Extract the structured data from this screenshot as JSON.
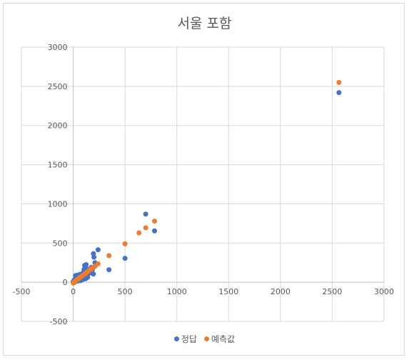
{
  "chart_data": {
    "type": "scatter",
    "title": "서울 포함",
    "xlabel": "",
    "ylabel": "",
    "xlim": [
      -500,
      3000
    ],
    "ylim": [
      -500,
      3000
    ],
    "xticks": [
      -500,
      0,
      500,
      1000,
      1500,
      2000,
      2500,
      3000
    ],
    "yticks": [
      -500,
      0,
      500,
      1000,
      1500,
      2000,
      2500,
      3000
    ],
    "xtick_labels": [
      "-500",
      "0",
      "500",
      "1000",
      "1500",
      "2000",
      "2500",
      "3000"
    ],
    "ytick_labels": [
      "-500",
      "0",
      "500",
      "1000",
      "1500",
      "2000",
      "2500",
      "3000"
    ],
    "grid": true,
    "legend_position": "bottom",
    "series": [
      {
        "name": "정답",
        "color": "#4472c4",
        "points": [
          [
            2565,
            2420
          ],
          [
            700,
            870
          ],
          [
            785,
            655
          ],
          [
            500,
            305
          ],
          [
            345,
            160
          ],
          [
            240,
            415
          ],
          [
            195,
            365
          ],
          [
            200,
            320
          ],
          [
            210,
            250
          ],
          [
            195,
            105
          ],
          [
            150,
            115
          ],
          [
            125,
            225
          ],
          [
            110,
            215
          ],
          [
            135,
            170
          ],
          [
            105,
            165
          ],
          [
            120,
            45
          ],
          [
            130,
            55
          ],
          [
            140,
            65
          ],
          [
            95,
            35
          ],
          [
            90,
            110
          ],
          [
            80,
            75
          ],
          [
            75,
            60
          ],
          [
            70,
            20
          ],
          [
            60,
            95
          ],
          [
            55,
            50
          ],
          [
            50,
            30
          ],
          [
            45,
            15
          ],
          [
            40,
            40
          ],
          [
            35,
            25
          ],
          [
            30,
            70
          ],
          [
            25,
            10
          ],
          [
            20,
            20
          ],
          [
            15,
            5
          ],
          [
            10,
            30
          ],
          [
            5,
            0
          ],
          [
            0,
            10
          ],
          [
            2,
            -10
          ],
          [
            8,
            -5
          ],
          [
            12,
            15
          ],
          [
            18,
            40
          ],
          [
            22,
            85
          ],
          [
            28,
            35
          ],
          [
            33,
            55
          ],
          [
            38,
            90
          ],
          [
            42,
            20
          ],
          [
            48,
            65
          ],
          [
            58,
            45
          ],
          [
            65,
            100
          ],
          [
            85,
            90
          ],
          [
            100,
            130
          ],
          [
            115,
            140
          ],
          [
            160,
            150
          ],
          [
            175,
            190
          ],
          [
            185,
            160
          ],
          [
            170,
            120
          ]
        ]
      },
      {
        "name": "예측값",
        "color": "#ed7d31",
        "points": [
          [
            2565,
            2550
          ],
          [
            785,
            780
          ],
          [
            700,
            695
          ],
          [
            635,
            630
          ],
          [
            500,
            490
          ],
          [
            345,
            340
          ],
          [
            240,
            235
          ],
          [
            210,
            205
          ],
          [
            200,
            195
          ],
          [
            195,
            190
          ],
          [
            185,
            180
          ],
          [
            175,
            170
          ],
          [
            170,
            165
          ],
          [
            160,
            155
          ],
          [
            150,
            145
          ],
          [
            140,
            135
          ],
          [
            135,
            130
          ],
          [
            130,
            125
          ],
          [
            125,
            120
          ],
          [
            120,
            115
          ],
          [
            115,
            110
          ],
          [
            110,
            105
          ],
          [
            105,
            100
          ],
          [
            100,
            95
          ],
          [
            95,
            90
          ],
          [
            90,
            85
          ],
          [
            85,
            80
          ],
          [
            80,
            75
          ],
          [
            75,
            70
          ],
          [
            70,
            65
          ],
          [
            65,
            60
          ],
          [
            60,
            55
          ],
          [
            55,
            50
          ],
          [
            50,
            45
          ],
          [
            45,
            40
          ],
          [
            40,
            35
          ],
          [
            35,
            30
          ],
          [
            30,
            25
          ],
          [
            25,
            20
          ],
          [
            20,
            15
          ],
          [
            15,
            10
          ],
          [
            10,
            5
          ],
          [
            5,
            0
          ],
          [
            2,
            -5
          ],
          [
            0,
            -10
          ]
        ]
      }
    ]
  }
}
